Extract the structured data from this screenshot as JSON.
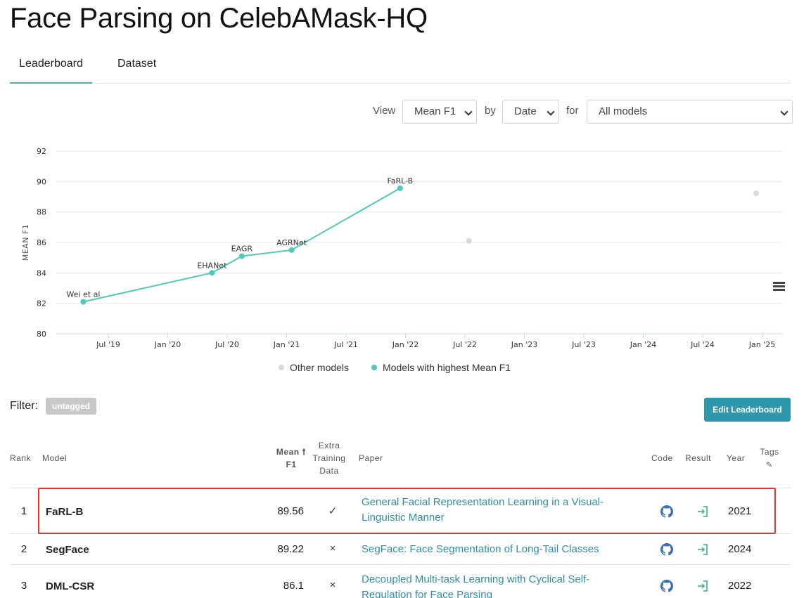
{
  "title": "Face Parsing on CelebAMask-HQ",
  "tabs": [
    {
      "label": "Leaderboard",
      "active": true
    },
    {
      "label": "Dataset",
      "active": false
    }
  ],
  "view_controls": {
    "view_label": "View",
    "metric_value": "Mean F1",
    "by_label": "by",
    "by_value": "Date",
    "for_label": "for",
    "for_value": "All models"
  },
  "chart_data": {
    "type": "line",
    "ylabel": "MEAN F1",
    "ylim": [
      80,
      92
    ],
    "y_ticks": [
      "80",
      "82",
      "84",
      "86",
      "88",
      "90",
      "92"
    ],
    "x_ticks": [
      "Jul '19",
      "Jan '20",
      "Jul '20",
      "Jan '21",
      "Jul '21",
      "Jan '22",
      "Jul '22",
      "Jan '23",
      "Jul '23",
      "Jan '24",
      "Jul '24",
      "Jan '25"
    ],
    "series": [
      {
        "name": "Models with highest Mean F1",
        "color": "#4dc9bd",
        "points": [
          {
            "label": "Wei et al",
            "date": "2019-04",
            "value": 82.1
          },
          {
            "label": "EHANet",
            "date": "2020-05",
            "value": 84.0
          },
          {
            "label": "EAGR",
            "date": "2020-08",
            "value": 85.1
          },
          {
            "label": "AGRNet",
            "date": "2021-01",
            "value": 85.5
          },
          {
            "label": "FaRL-B",
            "date": "2021-12",
            "value": 89.56
          }
        ]
      },
      {
        "name": "Other models",
        "color": "#d9d9d9",
        "points": [
          {
            "label": "",
            "date": "2022-07",
            "value": 86.1
          },
          {
            "label": "",
            "date": "2024-12",
            "value": 89.22
          }
        ]
      }
    ],
    "legend": [
      "Other models",
      "Models with highest Mean F1"
    ]
  },
  "filter": {
    "label": "Filter:",
    "tag": "untagged"
  },
  "edit_button": "Edit Leaderboard",
  "table": {
    "headers": {
      "rank": "Rank",
      "model": "Model",
      "metric_line1": "Mean",
      "metric_line2": "F1",
      "extra_line1": "Extra",
      "extra_line2": "Training",
      "extra_line3": "Data",
      "paper": "Paper",
      "code": "Code",
      "result": "Result",
      "year": "Year",
      "tags": "Tags"
    },
    "rows": [
      {
        "rank": "1",
        "model": "FaRL-B",
        "score": "89.56",
        "extra": "✓",
        "paper_line1": "General Facial Representation Learning in a Visual-",
        "paper_line2": "Linguistic Manner",
        "year": "2021"
      },
      {
        "rank": "2",
        "model": "SegFace",
        "score": "89.22",
        "extra": "×",
        "paper_line1": "SegFace: Face Segmentation of Long-Tail Classes",
        "paper_line2": "",
        "year": "2024"
      },
      {
        "rank": "3",
        "model": "DML-CSR",
        "score": "86.1",
        "extra": "×",
        "paper_line1": "Decoupled Multi-task Learning with Cyclical Self-",
        "paper_line2": "Regulation for Face Parsing",
        "year": "2022"
      }
    ]
  },
  "colors": {
    "accent": "#3fb9ad",
    "button": "#2e97ac",
    "link": "#2e8fa8",
    "highlight": "#e8352c"
  }
}
